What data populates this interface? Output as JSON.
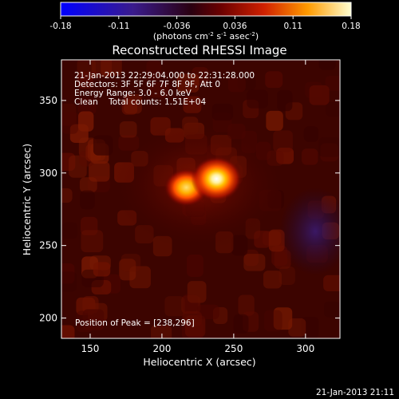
{
  "colorbar": {
    "ticks": [
      "-0.18",
      "-0.11",
      "-0.036",
      "0.036",
      "0.11",
      "0.18"
    ],
    "units_main": "(photons cm",
    "units_sup1": "-2",
    "units_mid": " s",
    "units_sup2": "-1",
    "units_mid2": " asec",
    "units_sup3": "-2",
    "units_end": ")"
  },
  "title": "Reconstructed RHESSI Image",
  "info": {
    "line1": "21-Jan-2013 22:29:04.000 to 22:31:28.000",
    "line2": "Detectors: 3F 5F 6F 7F 8F 9F, Att 0",
    "line3": "Energy Range: 3.0 - 6.0 keV",
    "line4": "Clean    Total counts: 1.51E+04"
  },
  "peak_label": "Position of Peak = [238,296]",
  "footer_date": "21-Jan-2013 21:11",
  "chart_data": {
    "type": "heatmap",
    "title": "Reconstructed RHESSI Image",
    "xlabel": "Heliocentric X (arcsec)",
    "ylabel": "Heliocentric Y (arcsec)",
    "xlim": [
      130,
      324
    ],
    "ylim": [
      186,
      378
    ],
    "x_ticks": [
      150,
      200,
      250,
      300
    ],
    "y_ticks": [
      200,
      250,
      300,
      350
    ],
    "colorbar_range": [
      -0.18,
      0.18
    ],
    "colorbar_units": "photons cm^-2 s^-1 asec^-2",
    "colormap": "hot-diverging",
    "sources": [
      {
        "x": 238,
        "y": 296,
        "peak": 0.18,
        "label": "peak"
      },
      {
        "x": 217,
        "y": 290,
        "peak": 0.14
      }
    ],
    "peak_position": [
      238,
      296
    ]
  }
}
